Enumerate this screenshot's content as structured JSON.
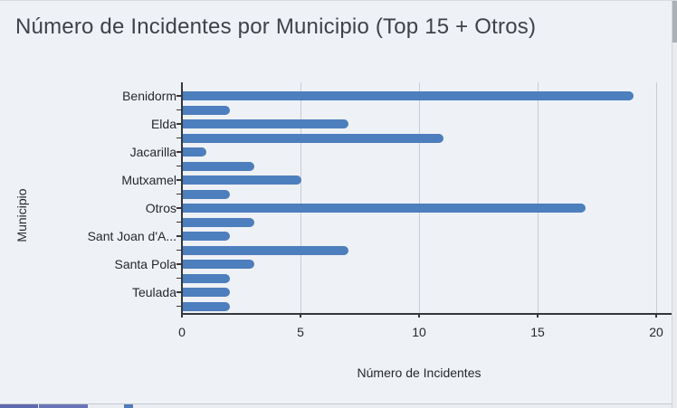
{
  "chart_data": {
    "type": "bar",
    "orientation": "horizontal",
    "title": "Número de Incidentes por Municipio (Top 15 + Otros)",
    "xlabel": "Número de Incidentes",
    "ylabel": "Municipio",
    "xlim": [
      0,
      20
    ],
    "xticks": [
      0,
      5,
      10,
      15,
      20
    ],
    "grid": true,
    "legend": false,
    "categories": [
      "Benidorm",
      "",
      "Elda",
      "",
      "Jacarilla",
      "",
      "Mutxamel",
      "",
      "Otros",
      "",
      "Sant Joan d'A...",
      "",
      "Santa Pola",
      "",
      "Teulada",
      ""
    ],
    "values": [
      19,
      2,
      7,
      11,
      1,
      3,
      5,
      2,
      17,
      3,
      2,
      7,
      3,
      2,
      2,
      2
    ]
  },
  "colors": {
    "background": "#eef1f6",
    "bar": "#4d7ebd",
    "gridline": "#c9cdd3",
    "axis": "#35373a",
    "tick_text": "#26282b",
    "title_text": "#3f4349",
    "scrollbar_thumb": "#aab0b6",
    "next_chart_segment_1": "#5e69ae",
    "next_chart_segment_2": "#6974b8",
    "next_chart_marker": "#4f7cba"
  }
}
